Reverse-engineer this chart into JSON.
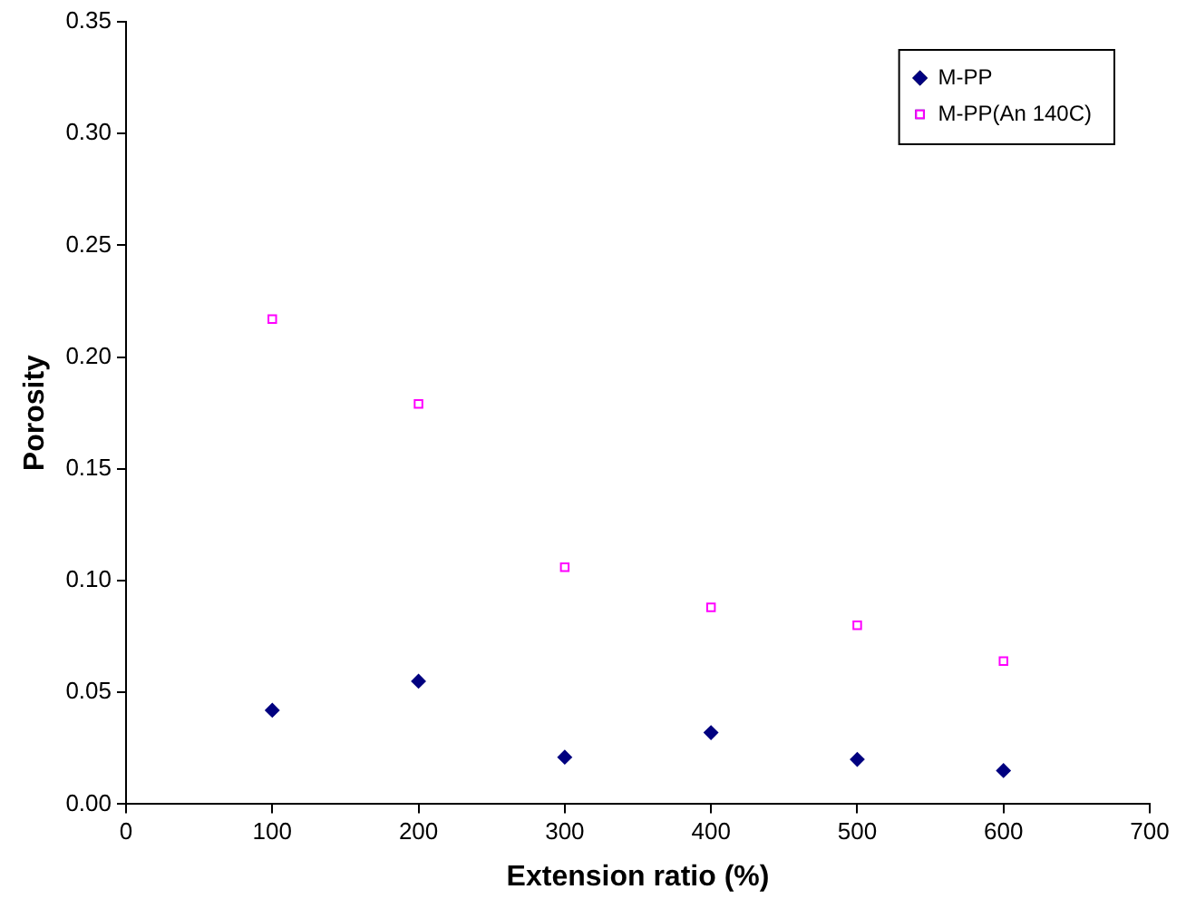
{
  "chart_data": {
    "type": "scatter",
    "xlabel": "Extension ratio (%)",
    "ylabel": "Porosity",
    "x": [
      100,
      200,
      300,
      400,
      500,
      600
    ],
    "series": [
      {
        "name": "M-PP",
        "color": "#000080",
        "marker": "diamond",
        "values": [
          0.042,
          0.055,
          0.021,
          0.032,
          0.02,
          0.015
        ]
      },
      {
        "name": "M-PP(An 140C)",
        "color": "#ff00ff",
        "marker": "square",
        "values": [
          0.217,
          0.179,
          0.106,
          0.088,
          0.08,
          0.064
        ]
      }
    ],
    "xlim": [
      0,
      700
    ],
    "xticks": [
      0,
      100,
      200,
      300,
      400,
      500,
      600,
      700
    ],
    "ylim": [
      0,
      0.35
    ],
    "yticks": [
      {
        "value": 0,
        "label": "0.00"
      },
      {
        "value": 0.05,
        "label": "0.05"
      },
      {
        "value": 0.1,
        "label": "0.10"
      },
      {
        "value": 0.15,
        "label": "0.15"
      },
      {
        "value": 0.2,
        "label": "0.20"
      },
      {
        "value": 0.25,
        "label": "0.25"
      },
      {
        "value": 0.3,
        "label": "0.30"
      },
      {
        "value": 0.35,
        "label": "0.35"
      }
    ],
    "grid": false,
    "legend": "top right"
  }
}
